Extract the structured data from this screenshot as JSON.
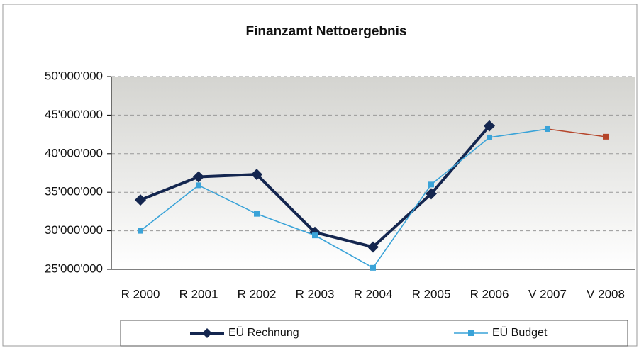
{
  "chart_data": {
    "type": "line",
    "title": "Finanzamt Nettoergebnis",
    "categories": [
      "R 2000",
      "R 2001",
      "R 2002",
      "R 2003",
      "R 2004",
      "R 2005",
      "R 2006",
      "V 2007",
      "V 2008"
    ],
    "series": [
      {
        "name": "EÜ Rechnung",
        "color": "#14264f",
        "values": [
          34000000,
          37000000,
          37300000,
          29800000,
          27900000,
          34800000,
          43600000,
          null,
          null
        ]
      },
      {
        "name": "EÜ Budget",
        "color": "#3aa3d8",
        "values": [
          30000000,
          35900000,
          32200000,
          29400000,
          25200000,
          36000000,
          42100000,
          43200000,
          42200000
        ],
        "point_colors": [
          "#3aa3d8",
          "#3aa3d8",
          "#3aa3d8",
          "#3aa3d8",
          "#3aa3d8",
          "#3aa3d8",
          "#3aa3d8",
          "#3aa3d8",
          "#b5452a"
        ]
      }
    ],
    "ylim": [
      25000000,
      50000000
    ],
    "yticks": [
      {
        "value": 25000000,
        "label": "25'000'000"
      },
      {
        "value": 30000000,
        "label": "30'000'000"
      },
      {
        "value": 35000000,
        "label": "35'000'000"
      },
      {
        "value": 40000000,
        "label": "40'000'000"
      },
      {
        "value": 45000000,
        "label": "45'000'000"
      },
      {
        "value": 50000000,
        "label": "50'000'000"
      }
    ],
    "grid": true,
    "legend": "bottom"
  }
}
